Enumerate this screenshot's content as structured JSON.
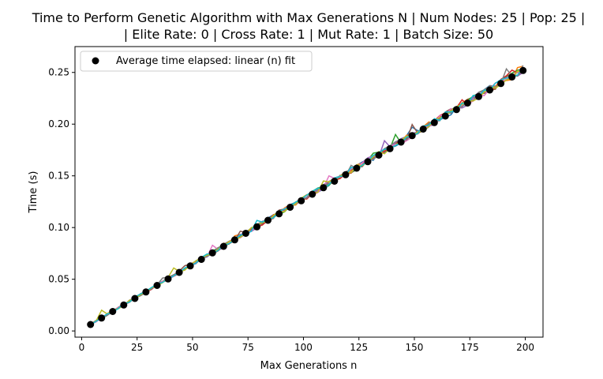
{
  "chart_data": {
    "type": "line",
    "title_lines": [
      "Time to Perform Genetic Algorithm with Max Generations N | Num Nodes: 25 | Pop: 25 |",
      "| Elite Rate: 0 | Cross Rate: 1 | Mut Rate: 1 | Batch Size: 50"
    ],
    "xlabel": "Max Generations n",
    "ylabel": "Time (s)",
    "xlim": [
      -3,
      208
    ],
    "ylim": [
      -0.006,
      0.275
    ],
    "xticks": [
      0,
      25,
      50,
      75,
      100,
      125,
      150,
      175,
      200
    ],
    "xtick_labels": [
      "0",
      "25",
      "50",
      "75",
      "100",
      "125",
      "150",
      "175",
      "200"
    ],
    "yticks": [
      0.0,
      0.05,
      0.1,
      0.15,
      0.2,
      0.25
    ],
    "ytick_labels": [
      "0.00",
      "0.05",
      "0.10",
      "0.15",
      "0.20",
      "0.25"
    ],
    "grid": false,
    "legend_position": "upper-left",
    "legend": [
      {
        "label": "Average time elapsed: linear (n) fit",
        "marker": "circle",
        "color": "#000000"
      }
    ],
    "fit_series": {
      "name": "Average time elapsed: linear (n) fit",
      "x": [
        4,
        9,
        14,
        19,
        24,
        29,
        34,
        39,
        44,
        49,
        54,
        59,
        64,
        69,
        74,
        79,
        84,
        89,
        94,
        99,
        104,
        109,
        114,
        119,
        124,
        129,
        134,
        139,
        144,
        149,
        154,
        159,
        164,
        169,
        174,
        179,
        184,
        189,
        194,
        199
      ],
      "y": [
        0.0062,
        0.0125,
        0.0188,
        0.0251,
        0.0314,
        0.0377,
        0.044,
        0.0503,
        0.0566,
        0.0629,
        0.0692,
        0.0755,
        0.0818,
        0.0881,
        0.0944,
        0.1007,
        0.107,
        0.1133,
        0.1196,
        0.1259,
        0.1322,
        0.1385,
        0.1448,
        0.1511,
        0.1574,
        0.1637,
        0.17,
        0.1763,
        0.1826,
        0.1889,
        0.1952,
        0.2015,
        0.2078,
        0.2141,
        0.2204,
        0.2267,
        0.233,
        0.2393,
        0.2456,
        0.2519
      ]
    },
    "trial_series": {
      "count": 10,
      "x_start": 4,
      "x_end": 199,
      "x_step": 2.5,
      "colors": [
        "#1f77b4",
        "#ff7f0e",
        "#2ca02c",
        "#d62728",
        "#9467bd",
        "#8c564b",
        "#e377c2",
        "#7f7f7f",
        "#bcbd22",
        "#17becf"
      ]
    }
  }
}
